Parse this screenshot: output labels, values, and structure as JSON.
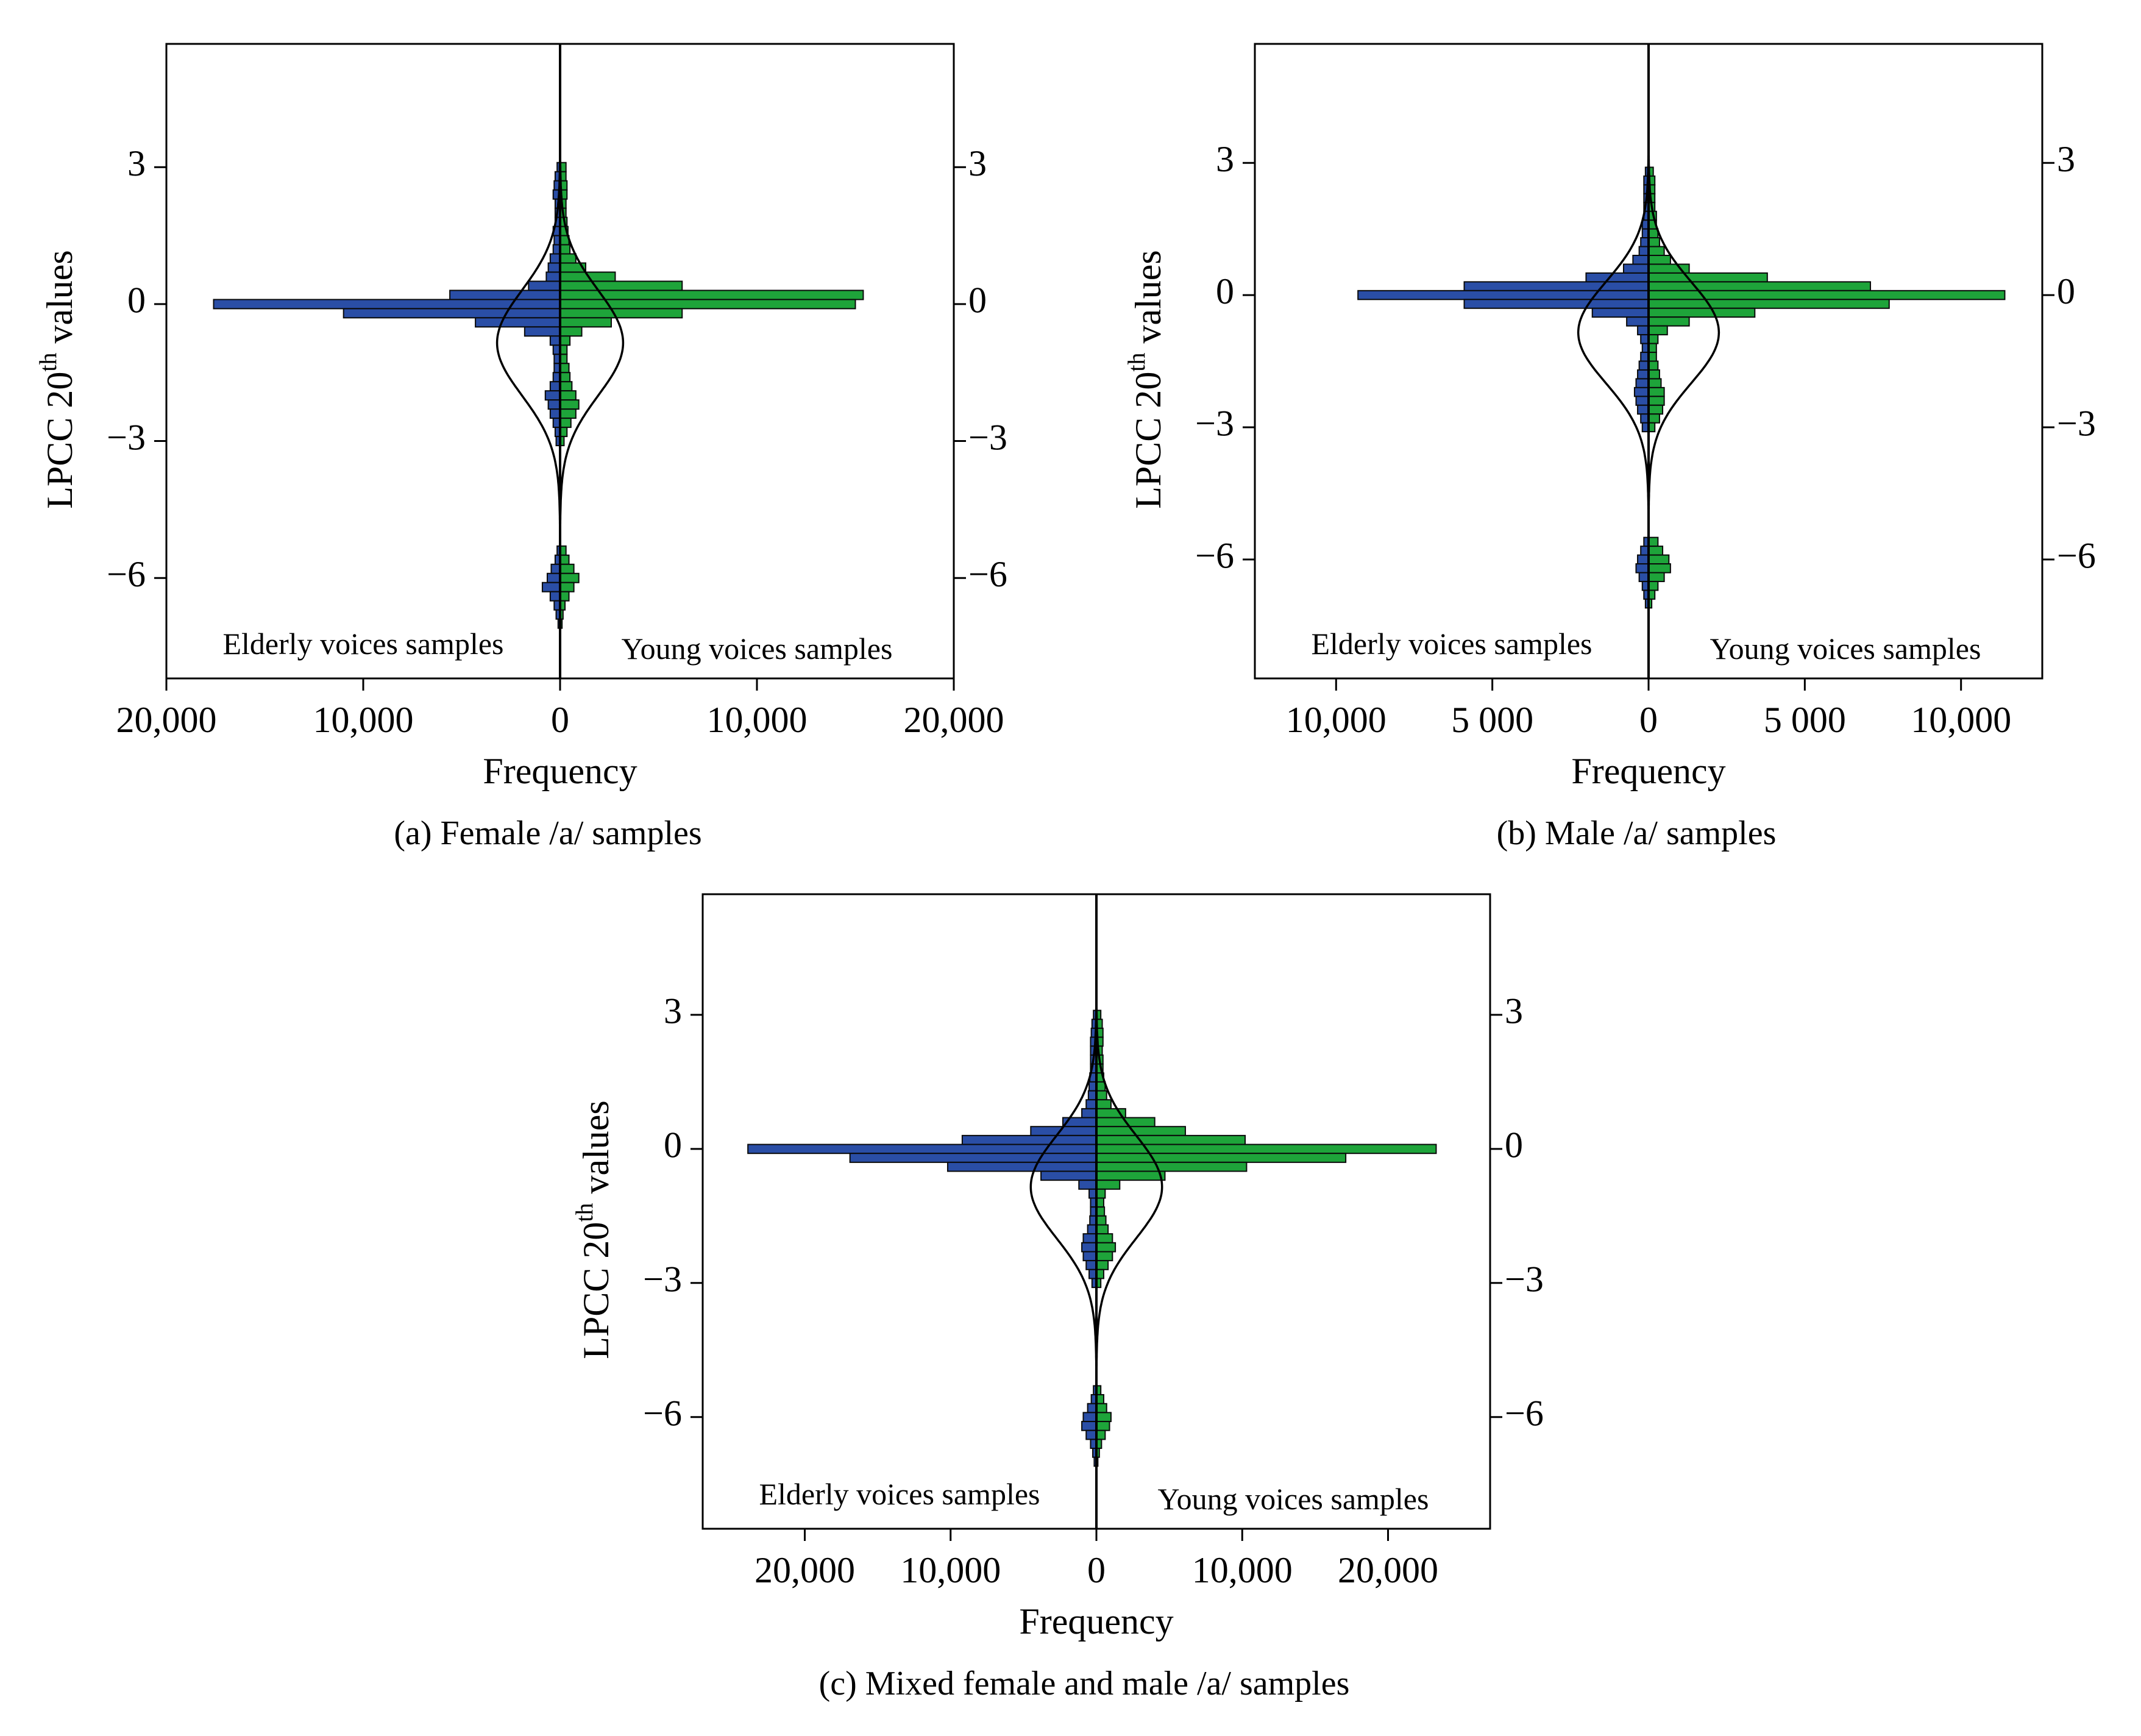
{
  "colors": {
    "elderly": "#2a4ea6",
    "young": "#1ea43a",
    "bar_stroke": "#0a0a0a",
    "curve": "#000000"
  },
  "chart_data": [
    {
      "type": "bar",
      "orientation": "back-to-back horizontal histogram",
      "panel_label": "(a) Female /a/ samples",
      "xlabel": "Frequency",
      "ylabel_main": "LPCC 20",
      "ylabel_sup": "th",
      "ylabel_tail": " values",
      "xlim": [
        -20000,
        20000
      ],
      "ylim": [
        -8.2,
        5.7
      ],
      "xticks": [
        -20000,
        -10000,
        0,
        10000,
        20000
      ],
      "xtick_labels": [
        "20,000",
        "10,000",
        "0",
        "10,000",
        "20,000"
      ],
      "yticks": [
        3,
        0,
        -3,
        -6
      ],
      "ytick_labels": [
        "3",
        "0",
        "−3",
        "−6"
      ],
      "bin_width": 0.2,
      "series": [
        {
          "name": "Elderly voices samples",
          "side": "left",
          "bins": [
            [
              3.0,
              150
            ],
            [
              2.8,
              250
            ],
            [
              2.6,
              300
            ],
            [
              2.4,
              350
            ],
            [
              2.2,
              250
            ],
            [
              2.0,
              250
            ],
            [
              1.8,
              250
            ],
            [
              1.6,
              350
            ],
            [
              1.4,
              300
            ],
            [
              1.2,
              350
            ],
            [
              1.0,
              500
            ],
            [
              0.8,
              600
            ],
            [
              0.6,
              700
            ],
            [
              0.4,
              1600
            ],
            [
              0.2,
              5600
            ],
            [
              0.0,
              17600
            ],
            [
              -0.2,
              11000
            ],
            [
              -0.4,
              4300
            ],
            [
              -0.6,
              1800
            ],
            [
              -0.8,
              500
            ],
            [
              -1.0,
              350
            ],
            [
              -1.2,
              300
            ],
            [
              -1.4,
              300
            ],
            [
              -1.6,
              350
            ],
            [
              -1.8,
              500
            ],
            [
              -2.0,
              750
            ],
            [
              -2.2,
              600
            ],
            [
              -2.4,
              500
            ],
            [
              -2.6,
              350
            ],
            [
              -2.8,
              250
            ],
            [
              -3.0,
              200
            ],
            [
              -5.4,
              150
            ],
            [
              -5.6,
              250
            ],
            [
              -5.8,
              450
            ],
            [
              -6.0,
              650
            ],
            [
              -6.2,
              900
            ],
            [
              -6.4,
              500
            ],
            [
              -6.6,
              300
            ],
            [
              -6.8,
              200
            ],
            [
              -7.0,
              100
            ]
          ]
        },
        {
          "name": "Young voices samples",
          "side": "right",
          "bins": [
            [
              3.0,
              300
            ],
            [
              2.8,
              300
            ],
            [
              2.6,
              350
            ],
            [
              2.4,
              350
            ],
            [
              2.2,
              300
            ],
            [
              2.0,
              300
            ],
            [
              1.8,
              350
            ],
            [
              1.6,
              400
            ],
            [
              1.4,
              450
            ],
            [
              1.2,
              500
            ],
            [
              1.0,
              800
            ],
            [
              0.8,
              1300
            ],
            [
              0.6,
              2800
            ],
            [
              0.4,
              6200
            ],
            [
              0.2,
              15400
            ],
            [
              0.0,
              15000
            ],
            [
              -0.2,
              6200
            ],
            [
              -0.4,
              2600
            ],
            [
              -0.6,
              1100
            ],
            [
              -0.8,
              500
            ],
            [
              -1.0,
              350
            ],
            [
              -1.2,
              350
            ],
            [
              -1.4,
              450
            ],
            [
              -1.6,
              500
            ],
            [
              -1.8,
              600
            ],
            [
              -2.0,
              800
            ],
            [
              -2.2,
              950
            ],
            [
              -2.4,
              800
            ],
            [
              -2.6,
              550
            ],
            [
              -2.8,
              350
            ],
            [
              -3.0,
              200
            ],
            [
              -5.4,
              300
            ],
            [
              -5.6,
              450
            ],
            [
              -5.8,
              700
            ],
            [
              -6.0,
              950
            ],
            [
              -6.2,
              700
            ],
            [
              -6.4,
              450
            ],
            [
              -6.6,
              250
            ],
            [
              -6.8,
              150
            ],
            [
              -7.0,
              100
            ]
          ]
        }
      ],
      "density_curve": {
        "type": "normal",
        "mean": -0.85,
        "sd": 1.15,
        "peak_frequency": 3200
      }
    },
    {
      "type": "bar",
      "orientation": "back-to-back horizontal histogram",
      "panel_label": "(b) Male /a/ samples",
      "xlabel": "Frequency",
      "ylabel_main": "LPCC 20",
      "ylabel_sup": "th",
      "ylabel_tail": " values",
      "xlim": [
        -12600,
        12600
      ],
      "ylim": [
        -8.7,
        5.7
      ],
      "xticks": [
        -10000,
        -5000,
        0,
        5000,
        10000
      ],
      "xtick_labels": [
        "10,000",
        "5 000",
        "0",
        "5 000",
        "10,000"
      ],
      "yticks": [
        3,
        0,
        -3,
        -6
      ],
      "ytick_labels": [
        "3",
        "0",
        "−3",
        "−6"
      ],
      "bin_width": 0.2,
      "series": [
        {
          "name": "Elderly voices samples",
          "side": "left",
          "bins": [
            [
              2.8,
              100
            ],
            [
              2.6,
              150
            ],
            [
              2.4,
              150
            ],
            [
              2.2,
              150
            ],
            [
              2.0,
              150
            ],
            [
              1.8,
              150
            ],
            [
              1.6,
              200
            ],
            [
              1.4,
              200
            ],
            [
              1.2,
              250
            ],
            [
              1.0,
              300
            ],
            [
              0.8,
              500
            ],
            [
              0.6,
              800
            ],
            [
              0.4,
              2000
            ],
            [
              0.2,
              5900
            ],
            [
              0.0,
              9300
            ],
            [
              -0.2,
              5900
            ],
            [
              -0.4,
              1800
            ],
            [
              -0.6,
              700
            ],
            [
              -0.8,
              350
            ],
            [
              -1.0,
              250
            ],
            [
              -1.2,
              200
            ],
            [
              -1.4,
              250
            ],
            [
              -1.6,
              300
            ],
            [
              -1.8,
              350
            ],
            [
              -2.0,
              400
            ],
            [
              -2.2,
              450
            ],
            [
              -2.4,
              400
            ],
            [
              -2.6,
              350
            ],
            [
              -2.8,
              250
            ],
            [
              -3.0,
              200
            ],
            [
              -5.6,
              150
            ],
            [
              -5.8,
              250
            ],
            [
              -6.0,
              350
            ],
            [
              -6.2,
              400
            ],
            [
              -6.4,
              300
            ],
            [
              -6.6,
              200
            ],
            [
              -6.8,
              150
            ],
            [
              -7.0,
              100
            ]
          ]
        },
        {
          "name": "Young voices samples",
          "side": "right",
          "bins": [
            [
              2.8,
              150
            ],
            [
              2.6,
              200
            ],
            [
              2.4,
              200
            ],
            [
              2.2,
              200
            ],
            [
              2.0,
              200
            ],
            [
              1.8,
              250
            ],
            [
              1.6,
              250
            ],
            [
              1.4,
              300
            ],
            [
              1.2,
              350
            ],
            [
              1.0,
              500
            ],
            [
              0.8,
              700
            ],
            [
              0.6,
              1300
            ],
            [
              0.4,
              3800
            ],
            [
              0.2,
              7100
            ],
            [
              0.0,
              11400
            ],
            [
              -0.2,
              7700
            ],
            [
              -0.4,
              3400
            ],
            [
              -0.6,
              1300
            ],
            [
              -0.8,
              600
            ],
            [
              -1.0,
              300
            ],
            [
              -1.2,
              250
            ],
            [
              -1.4,
              250
            ],
            [
              -1.6,
              300
            ],
            [
              -1.8,
              350
            ],
            [
              -2.0,
              400
            ],
            [
              -2.2,
              500
            ],
            [
              -2.4,
              500
            ],
            [
              -2.6,
              450
            ],
            [
              -2.8,
              350
            ],
            [
              -3.0,
              200
            ],
            [
              -5.6,
              300
            ],
            [
              -5.8,
              450
            ],
            [
              -6.0,
              650
            ],
            [
              -6.2,
              700
            ],
            [
              -6.4,
              500
            ],
            [
              -6.6,
              300
            ],
            [
              -6.8,
              200
            ],
            [
              -7.0,
              100
            ]
          ]
        }
      ],
      "density_curve": {
        "type": "normal",
        "mean": -0.85,
        "sd": 1.15,
        "peak_frequency": 2250
      }
    },
    {
      "type": "bar",
      "orientation": "back-to-back horizontal histogram",
      "panel_label": "(c) Mixed female and male /a/ samples",
      "xlabel": "Frequency",
      "ylabel_main": "LPCC 20",
      "ylabel_sup": "th",
      "ylabel_tail": " values",
      "xlim": [
        -27000,
        27000
      ],
      "ylim": [
        -8.5,
        5.7
      ],
      "xticks": [
        -20000,
        -10000,
        0,
        10000,
        20000
      ],
      "xtick_labels": [
        "20,000",
        "10,000",
        "0",
        "10,000",
        "20,000"
      ],
      "yticks": [
        3,
        0,
        -3,
        -6
      ],
      "ytick_labels": [
        "3",
        "0",
        "−3",
        "−6"
      ],
      "bin_width": 0.2,
      "series": [
        {
          "name": "Elderly voices samples",
          "side": "left",
          "bins": [
            [
              3.0,
              200
            ],
            [
              2.8,
              300
            ],
            [
              2.6,
              350
            ],
            [
              2.4,
              400
            ],
            [
              2.2,
              400
            ],
            [
              2.0,
              400
            ],
            [
              1.8,
              400
            ],
            [
              1.6,
              450
            ],
            [
              1.4,
              500
            ],
            [
              1.2,
              550
            ],
            [
              1.0,
              700
            ],
            [
              0.8,
              1000
            ],
            [
              0.6,
              2300
            ],
            [
              0.4,
              4500
            ],
            [
              0.2,
              9200
            ],
            [
              0.0,
              23900
            ],
            [
              -0.2,
              16900
            ],
            [
              -0.4,
              10200
            ],
            [
              -0.6,
              3800
            ],
            [
              -0.8,
              1200
            ],
            [
              -1.0,
              500
            ],
            [
              -1.2,
              400
            ],
            [
              -1.4,
              400
            ],
            [
              -1.6,
              450
            ],
            [
              -1.8,
              600
            ],
            [
              -2.0,
              900
            ],
            [
              -2.2,
              1000
            ],
            [
              -2.4,
              900
            ],
            [
              -2.6,
              700
            ],
            [
              -2.8,
              500
            ],
            [
              -3.0,
              300
            ],
            [
              -5.4,
              200
            ],
            [
              -5.6,
              350
            ],
            [
              -5.8,
              600
            ],
            [
              -6.0,
              900
            ],
            [
              -6.2,
              1000
            ],
            [
              -6.4,
              700
            ],
            [
              -6.6,
              400
            ],
            [
              -6.8,
              250
            ],
            [
              -7.0,
              150
            ]
          ]
        },
        {
          "name": "Young voices samples",
          "side": "right",
          "bins": [
            [
              3.0,
              300
            ],
            [
              2.8,
              400
            ],
            [
              2.6,
              450
            ],
            [
              2.4,
              450
            ],
            [
              2.2,
              400
            ],
            [
              2.0,
              450
            ],
            [
              1.8,
              450
            ],
            [
              1.6,
              500
            ],
            [
              1.4,
              600
            ],
            [
              1.2,
              700
            ],
            [
              1.0,
              1000
            ],
            [
              0.8,
              2000
            ],
            [
              0.6,
              4000
            ],
            [
              0.4,
              6100
            ],
            [
              0.2,
              10200
            ],
            [
              0.0,
              23300
            ],
            [
              -0.2,
              17100
            ],
            [
              -0.4,
              10300
            ],
            [
              -0.6,
              4700
            ],
            [
              -0.8,
              1600
            ],
            [
              -1.0,
              600
            ],
            [
              -1.2,
              500
            ],
            [
              -1.4,
              550
            ],
            [
              -1.6,
              650
            ],
            [
              -1.8,
              800
            ],
            [
              -2.0,
              1100
            ],
            [
              -2.2,
              1300
            ],
            [
              -2.4,
              1100
            ],
            [
              -2.6,
              800
            ],
            [
              -2.8,
              500
            ],
            [
              -3.0,
              300
            ],
            [
              -5.4,
              300
            ],
            [
              -5.6,
              500
            ],
            [
              -5.8,
              700
            ],
            [
              -6.0,
              1000
            ],
            [
              -6.2,
              900
            ],
            [
              -6.4,
              600
            ],
            [
              -6.6,
              350
            ],
            [
              -6.8,
              200
            ],
            [
              -7.0,
              100
            ]
          ]
        }
      ],
      "density_curve": {
        "type": "normal",
        "mean": -0.85,
        "sd": 1.15,
        "peak_frequency": 4500
      }
    }
  ]
}
